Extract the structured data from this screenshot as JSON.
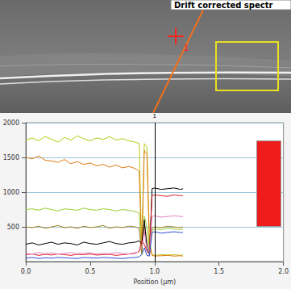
{
  "image": {
    "label": "Drift corrected spectr",
    "marker": "1"
  },
  "chart_data": {
    "type": "line",
    "xlabel": "Position (µm)",
    "xlim": [
      0,
      2
    ],
    "xticks": [
      {
        "value": 0,
        "label": "0.0"
      },
      0.5,
      {
        "value": 1,
        "label": "1.0"
      },
      1.5,
      {
        "value": 2,
        "label": "2.0"
      }
    ],
    "ylim": [
      0,
      2000
    ],
    "yticks": [
      500,
      1000,
      1500,
      2000
    ],
    "grid": true,
    "annotations": [
      {
        "x": 1,
        "text": "1"
      }
    ],
    "x": [
      0,
      0.05,
      0.1,
      0.15,
      0.2,
      0.25,
      0.3,
      0.35,
      0.4,
      0.45,
      0.5,
      0.55,
      0.6,
      0.65,
      0.7,
      0.75,
      0.8,
      0.85,
      0.88,
      0.9,
      0.92,
      0.94,
      0.96,
      0.98,
      1.0,
      1.05,
      1.1,
      1.15,
      1.2,
      1.22
    ],
    "series": [
      {
        "color": "#b8cc10",
        "values": [
          1750,
          1780,
          1740,
          1800,
          1760,
          1720,
          1790,
          1750,
          1810,
          1770,
          1740,
          1780,
          1760,
          1800,
          1750,
          1770,
          1740,
          1720,
          1700,
          200,
          1700,
          1650,
          300,
          100,
          90,
          100,
          95,
          100,
          90,
          100
        ]
      },
      {
        "color": "#e07a10",
        "values": [
          1500,
          1480,
          1520,
          1460,
          1450,
          1430,
          1470,
          1410,
          1440,
          1400,
          1420,
          1380,
          1400,
          1360,
          1390,
          1350,
          1370,
          1340,
          1300,
          150,
          1600,
          1550,
          250,
          90,
          80,
          85,
          90,
          80,
          85,
          80
        ]
      },
      {
        "color": "#9acd32",
        "values": [
          750,
          760,
          740,
          770,
          750,
          730,
          760,
          750,
          740,
          770,
          750,
          740,
          760,
          750,
          730,
          750,
          740,
          720,
          700,
          100,
          650,
          500,
          200,
          450,
          470,
          460,
          480,
          470,
          460,
          470
        ]
      },
      {
        "color": "#a08020",
        "values": [
          500,
          490,
          510,
          480,
          500,
          520,
          490,
          500,
          480,
          510,
          490,
          500,
          520,
          480,
          500,
          490,
          510,
          500,
          480,
          120,
          550,
          300,
          150,
          480,
          500,
          490,
          510,
          500,
          490,
          500
        ]
      },
      {
        "color": "#000000",
        "values": [
          250,
          270,
          240,
          260,
          280,
          250,
          270,
          260,
          240,
          280,
          260,
          250,
          270,
          290,
          260,
          250,
          270,
          280,
          300,
          250,
          600,
          200,
          100,
          1050,
          1060,
          1040,
          1050,
          1060,
          1040,
          1050
        ]
      },
      {
        "color": "#e0202a",
        "values": [
          100,
          110,
          90,
          105,
          95,
          110,
          100,
          90,
          105,
          100,
          110,
          95,
          100,
          105,
          90,
          100,
          110,
          120,
          150,
          300,
          250,
          150,
          100,
          950,
          960,
          950,
          940,
          960,
          950,
          950
        ]
      },
      {
        "color": "#e080c0",
        "values": [
          120,
          110,
          130,
          115,
          125,
          110,
          120,
          130,
          115,
          120,
          125,
          110,
          120,
          115,
          130,
          120,
          110,
          130,
          140,
          200,
          450,
          150,
          100,
          650,
          660,
          640,
          650,
          660,
          650,
          650
        ]
      },
      {
        "color": "#3050d0",
        "values": [
          50,
          60,
          45,
          55,
          50,
          60,
          55,
          50,
          45,
          60,
          55,
          50,
          60,
          55,
          50,
          45,
          55,
          60,
          70,
          100,
          200,
          90,
          80,
          420,
          430,
          410,
          420,
          430,
          420,
          420
        ]
      }
    ]
  }
}
